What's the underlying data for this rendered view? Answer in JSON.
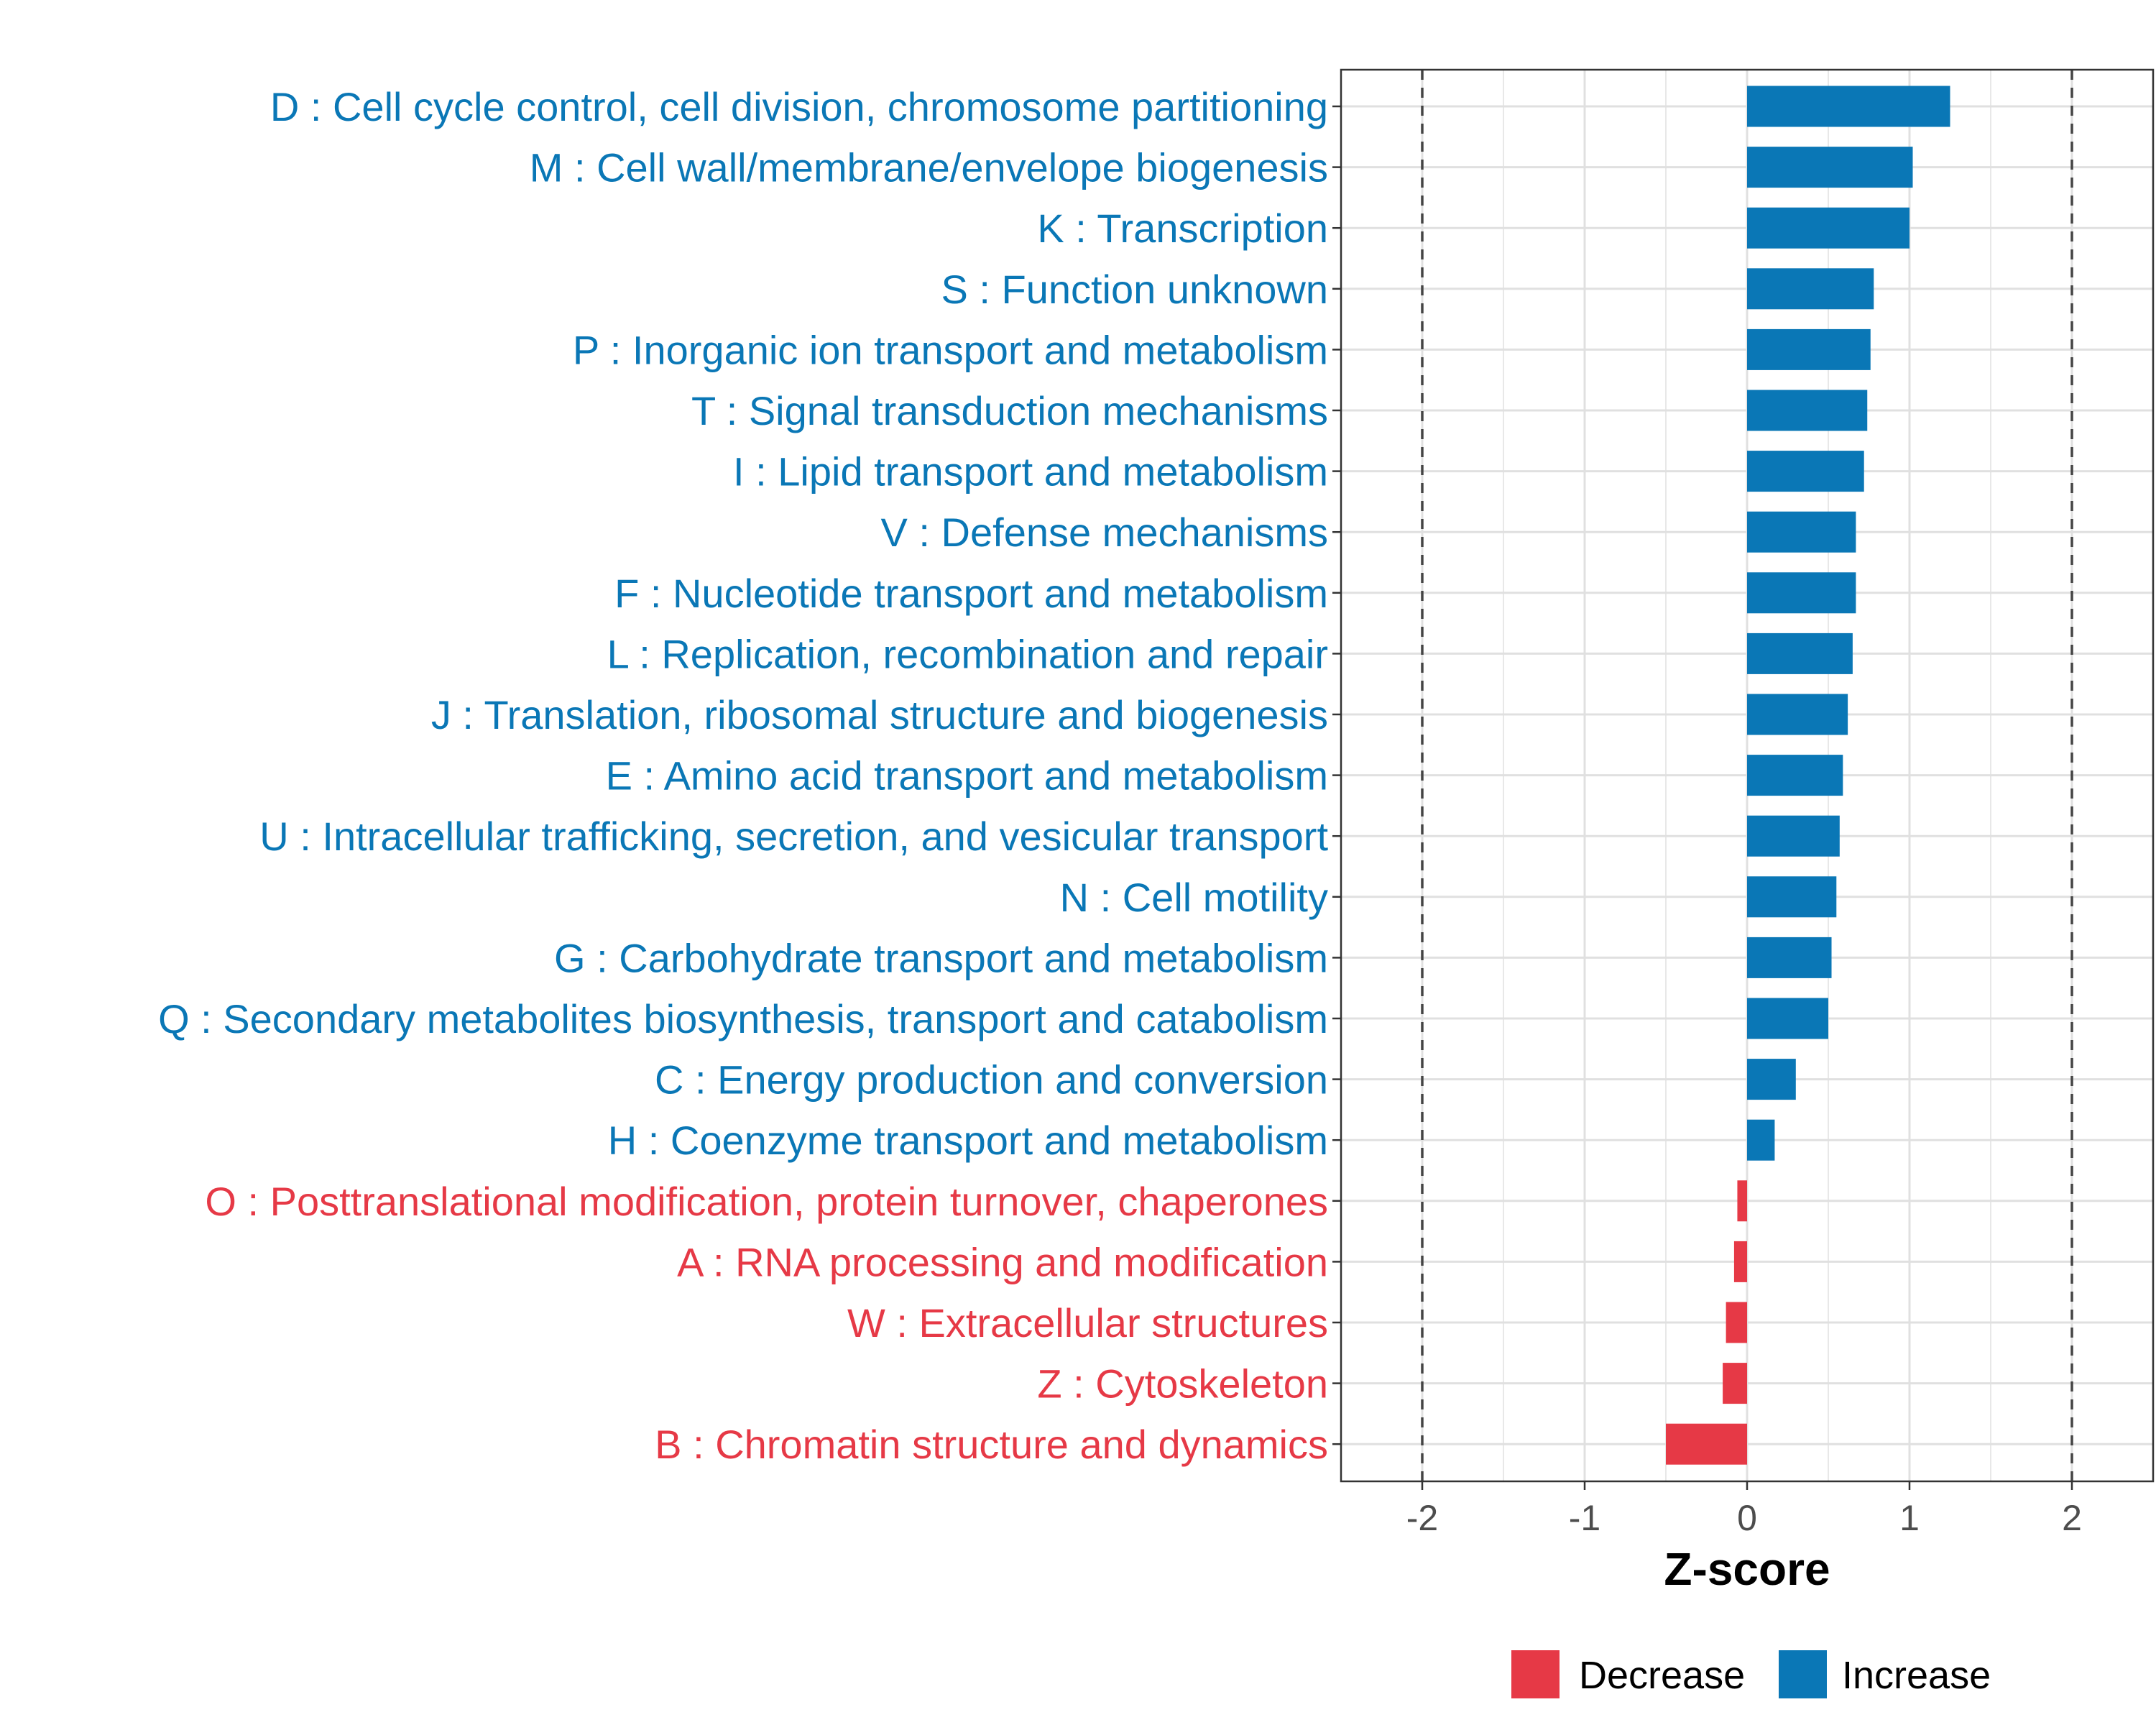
{
  "chart_data": {
    "type": "bar",
    "orientation": "horizontal",
    "title": "",
    "xlabel": "Z-score",
    "ylabel": "",
    "xlim": [
      -2.5,
      2.5
    ],
    "xticks": [
      -2,
      -1,
      0,
      1,
      2
    ],
    "xtick_labels": [
      "-2",
      "-1",
      "0",
      "1",
      "2"
    ],
    "reference_lines": [
      -2,
      2
    ],
    "grid": true,
    "legend_position": "bottom",
    "legend": [
      {
        "name": "Decrease",
        "color": "#e63946"
      },
      {
        "name": "Increase",
        "color": "#0a77b6"
      }
    ],
    "bars": [
      {
        "label": "D : Cell cycle control, cell division, chromosome partitioning",
        "value": 1.25,
        "group": "Increase"
      },
      {
        "label": "M : Cell wall/membrane/envelope biogenesis",
        "value": 1.02,
        "group": "Increase"
      },
      {
        "label": "K : Transcription",
        "value": 1.0,
        "group": "Increase"
      },
      {
        "label": "S : Function unknown",
        "value": 0.78,
        "group": "Increase"
      },
      {
        "label": "P : Inorganic ion transport and metabolism",
        "value": 0.76,
        "group": "Increase"
      },
      {
        "label": "T : Signal transduction mechanisms",
        "value": 0.74,
        "group": "Increase"
      },
      {
        "label": "I : Lipid transport and metabolism",
        "value": 0.72,
        "group": "Increase"
      },
      {
        "label": "V : Defense mechanisms",
        "value": 0.67,
        "group": "Increase"
      },
      {
        "label": "F : Nucleotide transport and metabolism",
        "value": 0.67,
        "group": "Increase"
      },
      {
        "label": "L : Replication, recombination and repair",
        "value": 0.65,
        "group": "Increase"
      },
      {
        "label": "J : Translation, ribosomal structure and biogenesis",
        "value": 0.62,
        "group": "Increase"
      },
      {
        "label": "E : Amino acid transport and metabolism",
        "value": 0.59,
        "group": "Increase"
      },
      {
        "label": "U : Intracellular trafficking, secretion, and vesicular transport",
        "value": 0.57,
        "group": "Increase"
      },
      {
        "label": "N : Cell motility",
        "value": 0.55,
        "group": "Increase"
      },
      {
        "label": "G : Carbohydrate transport and metabolism",
        "value": 0.52,
        "group": "Increase"
      },
      {
        "label": "Q : Secondary metabolites biosynthesis, transport and catabolism",
        "value": 0.5,
        "group": "Increase"
      },
      {
        "label": "C : Energy production and conversion",
        "value": 0.3,
        "group": "Increase"
      },
      {
        "label": "H : Coenzyme transport and metabolism",
        "value": 0.17,
        "group": "Increase"
      },
      {
        "label": "O : Posttranslational modification, protein turnover, chaperones",
        "value": -0.06,
        "group": "Decrease"
      },
      {
        "label": "A : RNA processing and modification",
        "value": -0.08,
        "group": "Decrease"
      },
      {
        "label": "W : Extracellular structures",
        "value": -0.13,
        "group": "Decrease"
      },
      {
        "label": "Z : Cytoskeleton",
        "value": -0.15,
        "group": "Decrease"
      },
      {
        "label": "B : Chromatin structure and dynamics",
        "value": -0.5,
        "group": "Decrease"
      }
    ]
  }
}
